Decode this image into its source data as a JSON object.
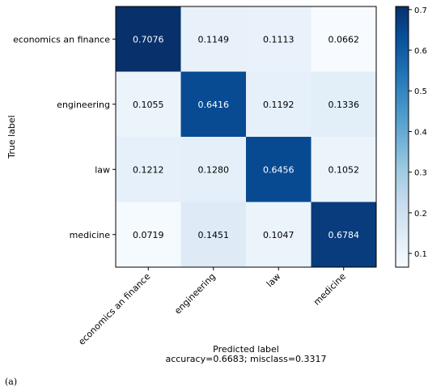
{
  "caption": "(a)",
  "chart_data": {
    "type": "heatmap",
    "title": "",
    "ylabel": "True label",
    "xlabel": "Predicted label",
    "xlabel_line2": "accuracy=0.6683; misclass=0.3317",
    "categories": [
      "economics an finance",
      "engineering",
      "law",
      "medicine"
    ],
    "x_tick_labels": [
      "economics an finance",
      "engineering",
      "law",
      "medicine"
    ],
    "y_tick_labels": [
      "economics an finance",
      "engineering",
      "law",
      "medicine"
    ],
    "matrix": [
      [
        0.7076,
        0.1149,
        0.1113,
        0.0662
      ],
      [
        0.1055,
        0.6416,
        0.1192,
        0.1336
      ],
      [
        0.1212,
        0.128,
        0.6456,
        0.1052
      ],
      [
        0.0719,
        0.1451,
        0.1047,
        0.6784
      ]
    ],
    "cell_labels": [
      [
        "0.7076",
        "0.1149",
        "0.1113",
        "0.0662"
      ],
      [
        "0.1055",
        "0.6416",
        "0.1192",
        "0.1336"
      ],
      [
        "0.1212",
        "0.1280",
        "0.6456",
        "0.1052"
      ],
      [
        "0.0719",
        "0.1451",
        "0.1047",
        "0.6784"
      ]
    ],
    "colormap": "Blues",
    "colorbar": {
      "range": [
        0.0662,
        0.7076
      ],
      "ticks": [
        0.1,
        0.2,
        0.3,
        0.4,
        0.5,
        0.6,
        0.7
      ],
      "tick_labels": [
        "0.1",
        "0.2",
        "0.3",
        "0.4",
        "0.5",
        "0.6",
        "0.7"
      ]
    },
    "text_color_dark": "#000000",
    "text_color_light": "#ffffff"
  }
}
